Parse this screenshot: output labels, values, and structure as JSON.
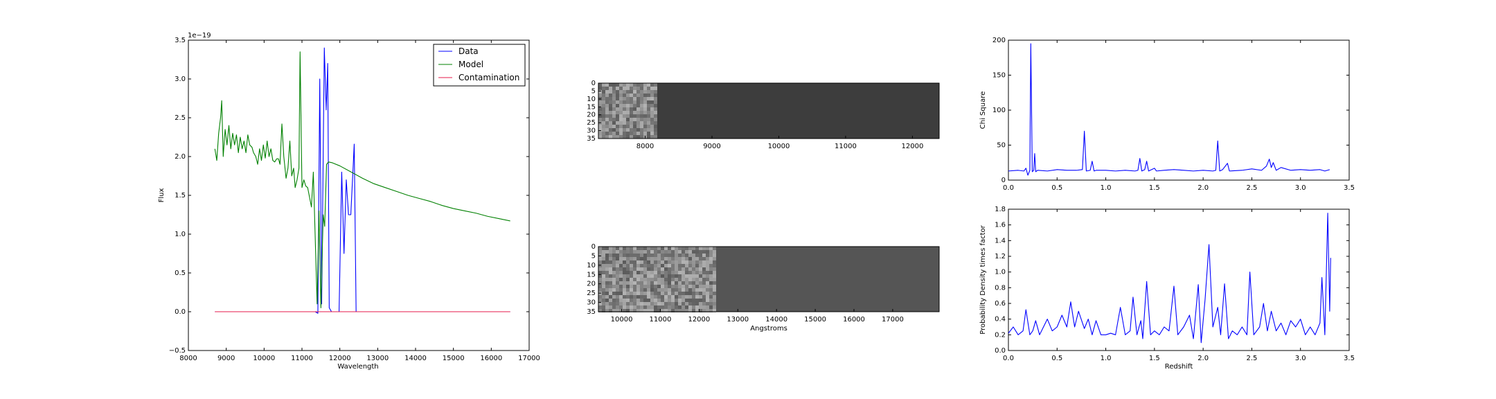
{
  "chart_data": [
    {
      "id": "spectrum",
      "type": "line",
      "xlabel": "Wavelength",
      "ylabel": "Flux",
      "offset_text": "1e−19",
      "xlim": [
        8000,
        17000
      ],
      "ylim": [
        -0.5,
        3.5
      ],
      "xticks": [
        "8000",
        "9000",
        "10000",
        "11000",
        "12000",
        "13000",
        "14000",
        "15000",
        "16000",
        "17000"
      ],
      "yticks": [
        "−0.5",
        "0.0",
        "0.5",
        "1.0",
        "1.5",
        "2.0",
        "2.5",
        "3.0",
        "3.5"
      ],
      "legend_position": "top-right",
      "series": [
        {
          "name": "Data",
          "color": "#0000ff",
          "points": [
            [
              8700,
              0
            ],
            [
              11350,
              0
            ],
            [
              11420,
              -0.02
            ],
            [
              11470,
              3.0
            ],
            [
              11520,
              0.1
            ],
            [
              11590,
              3.4
            ],
            [
              11640,
              2.6
            ],
            [
              11680,
              3.2
            ],
            [
              11720,
              0.05
            ],
            [
              11780,
              0
            ],
            [
              11830,
              0
            ],
            [
              11900,
              0
            ],
            [
              11980,
              0
            ],
            [
              12050,
              1.8
            ],
            [
              12110,
              0.75
            ],
            [
              12170,
              1.7
            ],
            [
              12230,
              1.25
            ],
            [
              12290,
              1.25
            ],
            [
              12380,
              2.16
            ],
            [
              12430,
              0
            ],
            [
              16500,
              0
            ]
          ]
        },
        {
          "name": "Model",
          "color": "#008000",
          "points": [
            [
              8700,
              2.1
            ],
            [
              8750,
              1.95
            ],
            [
              8800,
              2.3
            ],
            [
              8850,
              2.5
            ],
            [
              8880,
              2.72
            ],
            [
              8920,
              2.0
            ],
            [
              8970,
              2.35
            ],
            [
              9020,
              2.15
            ],
            [
              9070,
              2.4
            ],
            [
              9120,
              2.1
            ],
            [
              9170,
              2.3
            ],
            [
              9220,
              2.15
            ],
            [
              9270,
              2.28
            ],
            [
              9320,
              2.05
            ],
            [
              9370,
              2.25
            ],
            [
              9420,
              2.1
            ],
            [
              9470,
              2.2
            ],
            [
              9520,
              2.05
            ],
            [
              9570,
              2.28
            ],
            [
              9620,
              2.15
            ],
            [
              9680,
              2.12
            ],
            [
              9720,
              2.05
            ],
            [
              9780,
              2.0
            ],
            [
              9830,
              1.9
            ],
            [
              9880,
              2.1
            ],
            [
              9930,
              1.95
            ],
            [
              9980,
              2.15
            ],
            [
              10030,
              1.98
            ],
            [
              10080,
              2.2
            ],
            [
              10130,
              2.0
            ],
            [
              10180,
              2.1
            ],
            [
              10230,
              1.95
            ],
            [
              10280,
              1.93
            ],
            [
              10330,
              1.97
            ],
            [
              10380,
              1.97
            ],
            [
              10420,
              1.9
            ],
            [
              10470,
              2.42
            ],
            [
              10520,
              2.0
            ],
            [
              10580,
              1.72
            ],
            [
              10630,
              1.85
            ],
            [
              10680,
              2.2
            ],
            [
              10730,
              1.75
            ],
            [
              10780,
              1.85
            ],
            [
              10820,
              1.6
            ],
            [
              10870,
              1.7
            ],
            [
              10920,
              1.85
            ],
            [
              10950,
              3.35
            ],
            [
              11000,
              1.6
            ],
            [
              11050,
              1.7
            ],
            [
              11100,
              1.62
            ],
            [
              11150,
              1.6
            ],
            [
              11250,
              1.35
            ],
            [
              11300,
              1.8
            ],
            [
              11400,
              0.1
            ],
            [
              11450,
              1.3
            ],
            [
              11500,
              0.05
            ],
            [
              11560,
              1.25
            ],
            [
              11600,
              1.1
            ],
            [
              11650,
              1.9
            ],
            [
              11700,
              1.93
            ],
            [
              11800,
              1.92
            ],
            [
              12000,
              1.88
            ],
            [
              12300,
              1.8
            ],
            [
              12600,
              1.72
            ],
            [
              12900,
              1.65
            ],
            [
              13200,
              1.6
            ],
            [
              13500,
              1.55
            ],
            [
              13800,
              1.5
            ],
            [
              14100,
              1.46
            ],
            [
              14400,
              1.42
            ],
            [
              14700,
              1.37
            ],
            [
              15000,
              1.33
            ],
            [
              15300,
              1.3
            ],
            [
              15600,
              1.27
            ],
            [
              15900,
              1.23
            ],
            [
              16200,
              1.2
            ],
            [
              16500,
              1.17
            ]
          ]
        },
        {
          "name": "Contamination",
          "color": "#e6194b",
          "points": [
            [
              8700,
              0
            ],
            [
              16500,
              0
            ]
          ]
        }
      ]
    },
    {
      "id": "image-2d-top",
      "type": "heatmap",
      "xlim": [
        7300,
        12400
      ],
      "ylim": [
        35,
        0
      ],
      "xticks": [
        "8000",
        "9000",
        "10000",
        "11000",
        "12000"
      ],
      "yticks": [
        "0",
        "5",
        "10",
        "15",
        "20",
        "25",
        "30",
        "35"
      ],
      "textured_extent_fraction": 0.17,
      "colors": {
        "background": "#3d3d3d"
      }
    },
    {
      "id": "image-2d-bottom",
      "type": "heatmap",
      "xlabel": "Angstroms",
      "xlim": [
        9400,
        18200
      ],
      "ylim": [
        35,
        0
      ],
      "xticks": [
        "10000",
        "11000",
        "12000",
        "13000",
        "14000",
        "15000",
        "16000",
        "17000"
      ],
      "yticks": [
        "0",
        "5",
        "10",
        "15",
        "20",
        "25",
        "30",
        "35"
      ],
      "textured_extent_fraction": 0.34,
      "colors": {
        "background": "#555555"
      }
    },
    {
      "id": "chi-square",
      "type": "line",
      "xlabel": "",
      "ylabel": "Chi Square",
      "xlim": [
        0.0,
        3.5
      ],
      "ylim": [
        0,
        200
      ],
      "xticks": [
        "0.0",
        "0.5",
        "1.0",
        "1.5",
        "2.0",
        "2.5",
        "3.0",
        "3.5"
      ],
      "yticks": [
        "0",
        "50",
        "100",
        "150",
        "200"
      ],
      "series": [
        {
          "color": "#0000ff",
          "points": [
            [
              0.0,
              13
            ],
            [
              0.1,
              14
            ],
            [
              0.16,
              13
            ],
            [
              0.18,
              17
            ],
            [
              0.2,
              7
            ],
            [
              0.22,
              14
            ],
            [
              0.23,
              195
            ],
            [
              0.245,
              12
            ],
            [
              0.26,
              14
            ],
            [
              0.27,
              38
            ],
            [
              0.28,
              12
            ],
            [
              0.3,
              14
            ],
            [
              0.4,
              13
            ],
            [
              0.5,
              15
            ],
            [
              0.6,
              14
            ],
            [
              0.7,
              14
            ],
            [
              0.76,
              15
            ],
            [
              0.78,
              70
            ],
            [
              0.8,
              13
            ],
            [
              0.84,
              14
            ],
            [
              0.86,
              27
            ],
            [
              0.88,
              13
            ],
            [
              0.9,
              14
            ],
            [
              1.0,
              14
            ],
            [
              1.1,
              13
            ],
            [
              1.2,
              14
            ],
            [
              1.3,
              13
            ],
            [
              1.33,
              14
            ],
            [
              1.35,
              31
            ],
            [
              1.37,
              13
            ],
            [
              1.4,
              15
            ],
            [
              1.42,
              27
            ],
            [
              1.44,
              13
            ],
            [
              1.5,
              17
            ],
            [
              1.52,
              13
            ],
            [
              1.6,
              14
            ],
            [
              1.7,
              15
            ],
            [
              1.8,
              14
            ],
            [
              1.9,
              13
            ],
            [
              2.0,
              14
            ],
            [
              2.1,
              13
            ],
            [
              2.13,
              14
            ],
            [
              2.15,
              56
            ],
            [
              2.17,
              13
            ],
            [
              2.2,
              15
            ],
            [
              2.25,
              24
            ],
            [
              2.27,
              13
            ],
            [
              2.4,
              14
            ],
            [
              2.5,
              16
            ],
            [
              2.6,
              14
            ],
            [
              2.65,
              20
            ],
            [
              2.68,
              30
            ],
            [
              2.7,
              18
            ],
            [
              2.72,
              25
            ],
            [
              2.75,
              14
            ],
            [
              2.8,
              18
            ],
            [
              2.9,
              14
            ],
            [
              3.0,
              15
            ],
            [
              3.1,
              14
            ],
            [
              3.2,
              15
            ],
            [
              3.25,
              13
            ],
            [
              3.3,
              15
            ]
          ]
        }
      ]
    },
    {
      "id": "probability-density",
      "type": "line",
      "xlabel": "Redshift",
      "ylabel": "Probability Density times factor",
      "xlim": [
        0.0,
        3.5
      ],
      "ylim": [
        0.0,
        1.8
      ],
      "xticks": [
        "0.0",
        "0.5",
        "1.0",
        "1.5",
        "2.0",
        "2.5",
        "3.0",
        "3.5"
      ],
      "yticks": [
        "0.0",
        "0.2",
        "0.4",
        "0.6",
        "0.8",
        "1.0",
        "1.2",
        "1.4",
        "1.6",
        "1.8"
      ],
      "series": [
        {
          "color": "#0000ff",
          "points": [
            [
              0.0,
              0.22
            ],
            [
              0.05,
              0.3
            ],
            [
              0.1,
              0.2
            ],
            [
              0.15,
              0.25
            ],
            [
              0.18,
              0.52
            ],
            [
              0.22,
              0.2
            ],
            [
              0.25,
              0.25
            ],
            [
              0.28,
              0.38
            ],
            [
              0.32,
              0.2
            ],
            [
              0.36,
              0.3
            ],
            [
              0.4,
              0.4
            ],
            [
              0.45,
              0.25
            ],
            [
              0.5,
              0.3
            ],
            [
              0.55,
              0.45
            ],
            [
              0.6,
              0.3
            ],
            [
              0.64,
              0.62
            ],
            [
              0.68,
              0.3
            ],
            [
              0.72,
              0.5
            ],
            [
              0.78,
              0.28
            ],
            [
              0.82,
              0.4
            ],
            [
              0.86,
              0.2
            ],
            [
              0.9,
              0.38
            ],
            [
              0.95,
              0.2
            ],
            [
              1.0,
              0.2
            ],
            [
              1.05,
              0.22
            ],
            [
              1.1,
              0.2
            ],
            [
              1.15,
              0.55
            ],
            [
              1.2,
              0.2
            ],
            [
              1.25,
              0.25
            ],
            [
              1.28,
              0.68
            ],
            [
              1.32,
              0.2
            ],
            [
              1.36,
              0.38
            ],
            [
              1.38,
              0.15
            ],
            [
              1.42,
              0.88
            ],
            [
              1.46,
              0.2
            ],
            [
              1.5,
              0.25
            ],
            [
              1.55,
              0.2
            ],
            [
              1.6,
              0.3
            ],
            [
              1.65,
              0.25
            ],
            [
              1.7,
              0.82
            ],
            [
              1.74,
              0.2
            ],
            [
              1.8,
              0.3
            ],
            [
              1.86,
              0.45
            ],
            [
              1.9,
              0.15
            ],
            [
              1.95,
              0.84
            ],
            [
              1.98,
              0.1
            ],
            [
              2.02,
              0.65
            ],
            [
              2.06,
              1.35
            ],
            [
              2.1,
              0.3
            ],
            [
              2.15,
              0.55
            ],
            [
              2.18,
              0.2
            ],
            [
              2.22,
              0.85
            ],
            [
              2.26,
              0.15
            ],
            [
              2.3,
              0.25
            ],
            [
              2.35,
              0.2
            ],
            [
              2.4,
              0.3
            ],
            [
              2.45,
              0.2
            ],
            [
              2.48,
              1.0
            ],
            [
              2.52,
              0.2
            ],
            [
              2.58,
              0.3
            ],
            [
              2.62,
              0.6
            ],
            [
              2.66,
              0.25
            ],
            [
              2.7,
              0.5
            ],
            [
              2.75,
              0.25
            ],
            [
              2.8,
              0.35
            ],
            [
              2.85,
              0.2
            ],
            [
              2.9,
              0.38
            ],
            [
              2.95,
              0.3
            ],
            [
              3.0,
              0.4
            ],
            [
              3.05,
              0.2
            ],
            [
              3.1,
              0.3
            ],
            [
              3.15,
              0.2
            ],
            [
              3.2,
              0.35
            ],
            [
              3.22,
              0.93
            ],
            [
              3.25,
              0.2
            ],
            [
              3.28,
              1.75
            ],
            [
              3.3,
              0.5
            ],
            [
              3.31,
              1.18
            ]
          ]
        }
      ]
    }
  ]
}
